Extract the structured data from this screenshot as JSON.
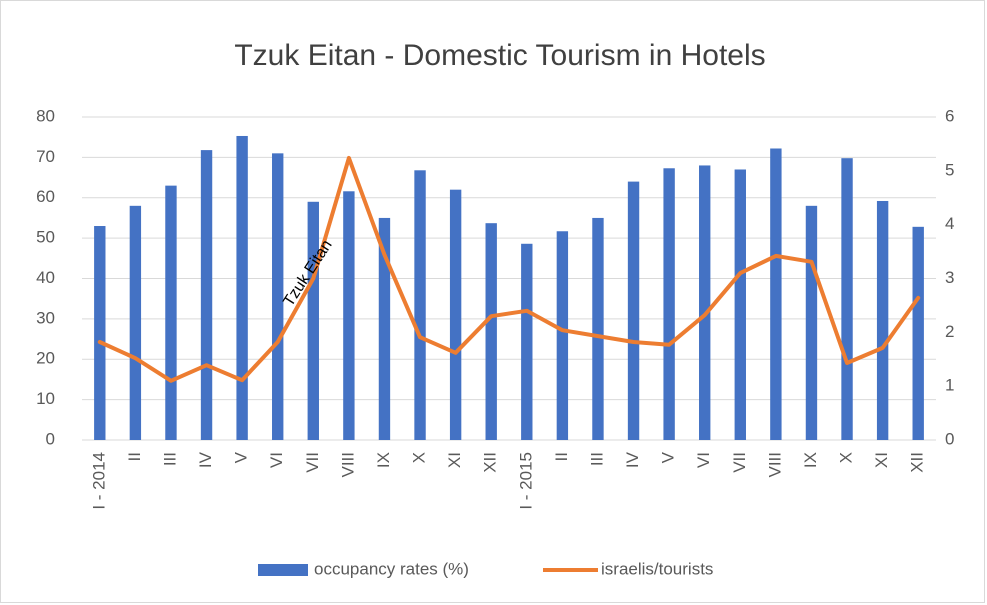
{
  "chart_data": {
    "type": "bar",
    "title": "Tzuk Eitan - Domestic Tourism in Hotels",
    "categories": [
      "I - 2014",
      "II",
      "III",
      "IV",
      "V",
      "VI",
      "VII",
      "VIII",
      "IX",
      "X",
      "XI",
      "XII",
      "I - 2015",
      "II",
      "III",
      "IV",
      "V",
      "VI",
      "VII",
      "VIII",
      "IX",
      "X",
      "XI",
      "XII"
    ],
    "series": [
      {
        "name": "occupancy rates (%)",
        "type": "bar",
        "color": "#4472c4",
        "values": [
          53,
          58,
          63,
          71.8,
          75.3,
          71,
          59,
          61.6,
          55,
          66.8,
          62,
          53.7,
          48.6,
          51.7,
          55,
          64,
          67.3,
          68,
          67,
          72.2,
          58,
          69.8,
          59.2,
          52.8
        ]
      },
      {
        "name": "israelis/tourists",
        "type": "line",
        "axis": "y2",
        "color": "#ed7d31",
        "values": [
          1.82,
          1.52,
          1.1,
          1.39,
          1.11,
          1.82,
          3.0,
          5.24,
          3.44,
          1.91,
          1.62,
          2.3,
          2.4,
          2.04,
          1.93,
          1.82,
          1.77,
          2.32,
          3.1,
          3.42,
          3.31,
          1.43,
          1.71,
          2.64
        ]
      }
    ],
    "ylim": [
      0,
      80
    ],
    "yticks": [
      0,
      10,
      20,
      30,
      40,
      50,
      60,
      70,
      80
    ],
    "y2lim": [
      0,
      6
    ],
    "y2ticks": [
      0,
      1,
      2,
      3,
      4,
      5,
      6
    ],
    "grid": true,
    "legend": "bottom",
    "annotations": [
      {
        "text": "Tzuk Eitan",
        "x": "VII",
        "value": 3.0
      }
    ]
  }
}
